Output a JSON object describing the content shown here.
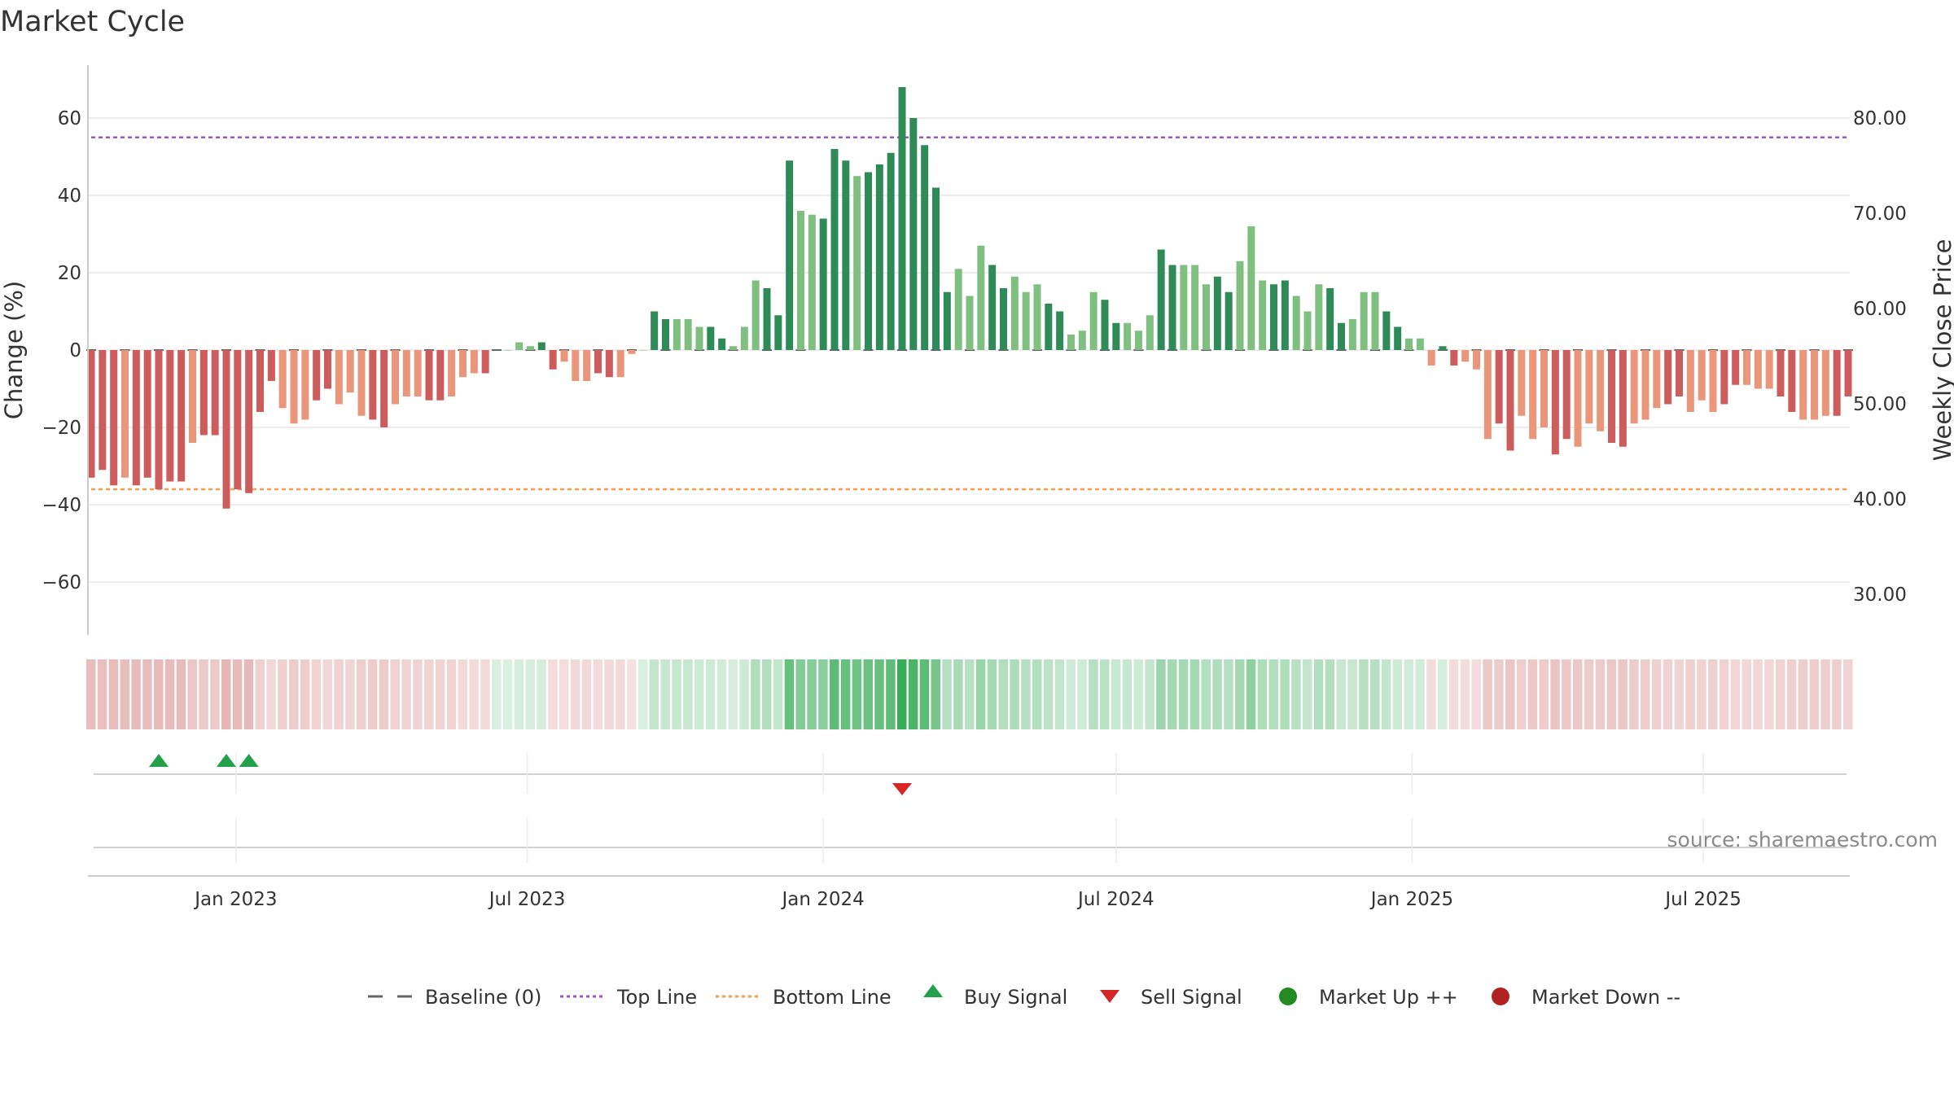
{
  "chart_data": {
    "type": "bar",
    "title": "Market Cycle",
    "source": "source: sharemaestro.com",
    "y_left": {
      "label": "Change (%)",
      "range": [
        -74,
        74
      ],
      "ticks": [
        60,
        40,
        20,
        0,
        -20,
        -40,
        -60
      ],
      "tick_labels": [
        "60",
        "40",
        "20",
        "0",
        "−20",
        "−40",
        "−60"
      ]
    },
    "y_right": {
      "label": "Weekly Close Price",
      "ticks": [
        80,
        70,
        60,
        50,
        40,
        30
      ],
      "tick_labels": [
        "80.00",
        "70.00",
        "60.00",
        "50.00",
        "40.00",
        "30.00"
      ]
    },
    "x_axis": {
      "start": "2022-10-03",
      "step_days": 7,
      "tick_labels": [
        "Jan 2023",
        "Jul 2023",
        "Jan 2024",
        "Jul 2024",
        "Jan 2025",
        "Jul 2025"
      ],
      "tick_dates": [
        "2023-01-01",
        "2023-07-01",
        "2024-01-01",
        "2024-07-01",
        "2025-01-01",
        "2025-07-01"
      ]
    },
    "top_line": 55,
    "bottom_line": -36,
    "baseline": 0,
    "values": [
      -33,
      -31,
      -35,
      -33,
      -35,
      -33,
      -36,
      -34,
      -34,
      -24,
      -22,
      -22,
      -41,
      -36,
      -37,
      -16,
      -8,
      -15,
      -19,
      -18,
      -13,
      -10,
      -14,
      -11,
      -17,
      -18,
      -20,
      -14,
      -12,
      -12,
      -13,
      -13,
      -12,
      -7,
      -6,
      -6,
      0,
      0,
      2,
      1,
      2,
      -5,
      -3,
      -8,
      -8,
      -6,
      -7,
      -7,
      -1,
      0,
      10,
      8,
      8,
      8,
      6,
      6,
      3,
      1,
      6,
      18,
      16,
      9,
      49,
      36,
      35,
      34,
      52,
      49,
      45,
      46,
      48,
      51,
      68,
      60,
      53,
      42,
      15,
      21,
      14,
      27,
      22,
      16,
      19,
      15,
      17,
      12,
      10,
      4,
      5,
      15,
      13,
      7,
      7,
      5,
      9,
      26,
      22,
      22,
      22,
      17,
      19,
      15,
      23,
      32,
      18,
      17,
      18,
      14,
      10,
      17,
      16,
      7,
      8,
      15,
      15,
      10,
      6,
      3,
      3,
      -4,
      1,
      -4,
      -3,
      -5,
      -23,
      -19,
      -26,
      -17,
      -23,
      -20,
      -27,
      -23,
      -25,
      -19,
      -21,
      -24,
      -25,
      -19,
      -18,
      -15,
      -14,
      -12,
      -16,
      -13,
      -16,
      -14,
      -9,
      -9,
      -10,
      -10,
      -12,
      -16,
      -18,
      -18,
      -17,
      -17,
      -12
    ],
    "signals": {
      "buy_weeks": [
        6,
        12,
        14
      ],
      "sell_weeks": [
        72
      ],
      "market_up_weeks": [],
      "market_down_weeks": []
    },
    "legend": [
      {
        "label": "Baseline (0)",
        "icon": "dash"
      },
      {
        "label": "Top Line",
        "icon": "dotted-purple"
      },
      {
        "label": "Bottom Line",
        "icon": "dotted-orange"
      },
      {
        "label": "Buy Signal",
        "icon": "triangle-up"
      },
      {
        "label": "Sell Signal",
        "icon": "triangle-down"
      },
      {
        "label": "Market Up ++",
        "icon": "circle-green"
      },
      {
        "label": "Market Down --",
        "icon": "circle-red"
      }
    ],
    "legend_position": "bottom-center",
    "colors": {
      "strong_up": "#2e8b57",
      "weak_up": "#7fbf7f",
      "strong_down": "#cd5c5c",
      "weak_down": "#e9967a",
      "top_line": "#9b59b6",
      "bottom_line": "#f0a050",
      "buy": "#22a04b",
      "sell": "#d62728",
      "market_up": "#228b22",
      "market_down": "#b22222",
      "baseline": "#666666"
    }
  }
}
